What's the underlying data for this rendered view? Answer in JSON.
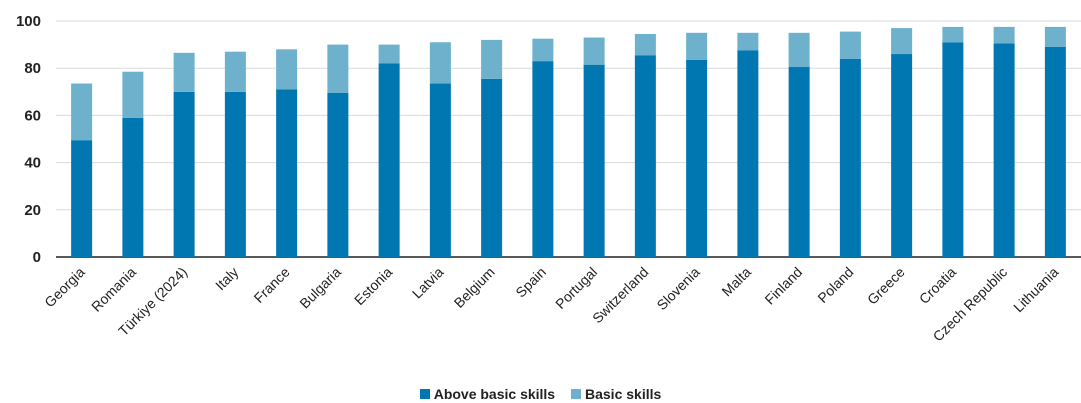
{
  "chart_data": {
    "type": "bar",
    "stacked": true,
    "title": "",
    "xlabel": "",
    "ylabel": "",
    "ylim": [
      0,
      100
    ],
    "yticks": [
      0,
      20,
      40,
      60,
      80,
      100
    ],
    "grid": true,
    "legend_position": "bottom",
    "categories": [
      "Georgia",
      "Romania",
      "Türkiye (2024)",
      "Italy",
      "France",
      "Bulgaria",
      "Estonia",
      "Latvia",
      "Belgium",
      "Spain",
      "Portugal",
      "Switzerland",
      "Slovenia",
      "Malta",
      "Finland",
      "Poland",
      "Greece",
      "Croatia",
      "Czech Republic",
      "Lithuania"
    ],
    "series": [
      {
        "name": "Above basic skills",
        "color": "#0077b0",
        "values": [
          49.5,
          59,
          70,
          70,
          71,
          69.5,
          82,
          73.5,
          75.5,
          83,
          81.5,
          85.5,
          83.5,
          87.5,
          80.5,
          84,
          86,
          91,
          90.5,
          89
        ]
      },
      {
        "name": "Basic skills",
        "color": "#6db1cd",
        "values": [
          24,
          19.5,
          16.5,
          17,
          17,
          20.5,
          8,
          17.5,
          16.5,
          9.5,
          11.5,
          9,
          11.5,
          7.5,
          14.5,
          11.5,
          11,
          6.5,
          7,
          8.5
        ]
      }
    ]
  }
}
